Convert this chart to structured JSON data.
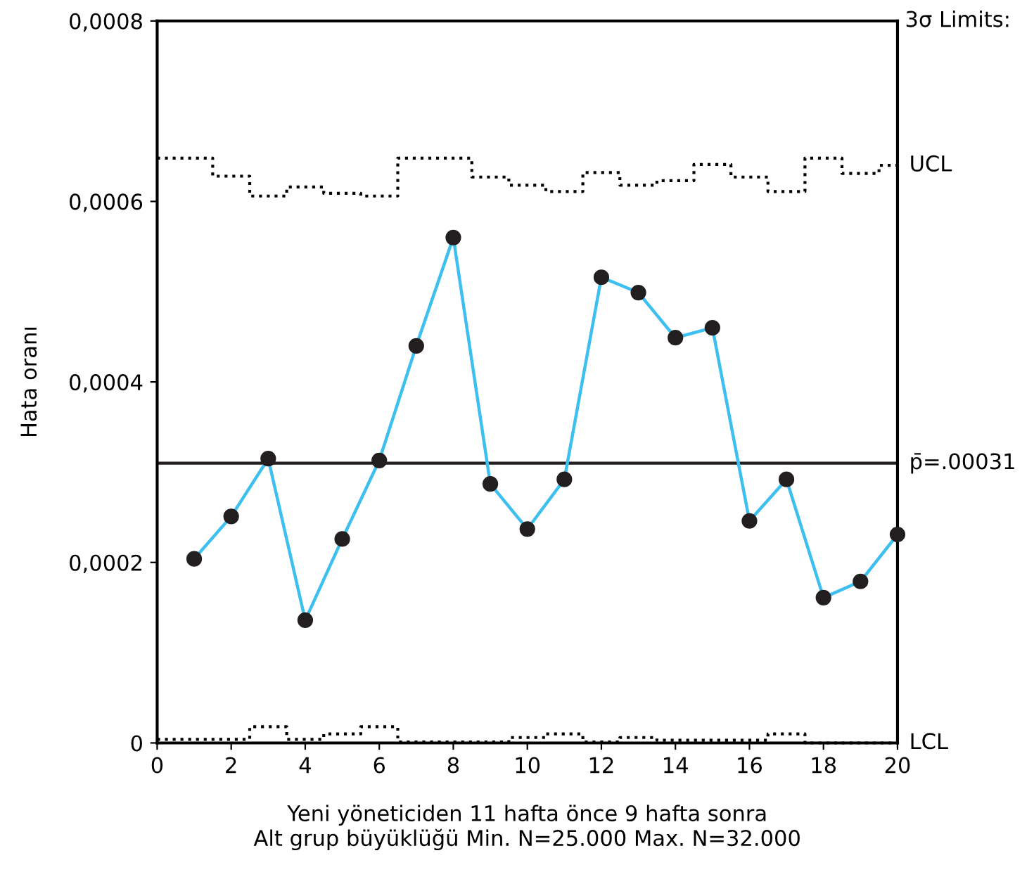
{
  "chart_data": {
    "type": "line",
    "xlabel": "Yeni yöneticiden 11 hafta önce 9 hafta sonra\nAlt grup büyüklüğü Min. N=25.000 Max. N=32.000",
    "ylabel": "Hata oranı",
    "xlim": [
      0,
      20
    ],
    "xticks": [
      0,
      2,
      4,
      6,
      8,
      10,
      12,
      14,
      16,
      18,
      20
    ],
    "ylim": [
      0,
      0.0008
    ],
    "yticks": [
      {
        "value": 0,
        "label": "0"
      },
      {
        "value": 0.0002,
        "label": "0,0002"
      },
      {
        "value": 0.0004,
        "label": "0,0004"
      },
      {
        "value": 0.0006,
        "label": "0,0006"
      },
      {
        "value": 0.0008,
        "label": "0,0008"
      }
    ],
    "grid": false,
    "legend": false,
    "marker": "circle",
    "line_style": "solid",
    "series": [
      {
        "color": "#3dbfef",
        "x": [
          1,
          2,
          3,
          4,
          5,
          6,
          7,
          8,
          9,
          10,
          11,
          12,
          13,
          14,
          15,
          16,
          17,
          18,
          19,
          20
        ],
        "values": [
          0.000204,
          0.000251,
          0.000315,
          0.000136,
          0.000226,
          0.000313,
          0.00044,
          0.00056,
          0.000287,
          0.000237,
          0.000292,
          0.000516,
          0.000499,
          0.000449,
          0.00046,
          0.000246,
          0.000292,
          0.000161,
          0.000179,
          0.000231
        ]
      },
      {
        "type": "step",
        "color": "#000000",
        "marker": "none",
        "line_style": "dotted",
        "x": [
          0,
          1,
          2,
          3,
          4,
          5,
          6,
          7,
          8,
          9,
          10,
          11,
          12,
          13,
          14,
          15,
          16,
          17,
          18,
          19,
          20
        ],
        "values": [
          0.000648,
          0.000648,
          0.000628,
          0.000606,
          0.000616,
          0.000609,
          0.000606,
          0.000648,
          0.000648,
          0.000627,
          0.000618,
          0.000611,
          0.000632,
          0.000618,
          0.000623,
          0.000641,
          0.000627,
          0.000611,
          0.000648,
          0.000631,
          0.00064
        ]
      },
      {
        "type": "step",
        "color": "#000000",
        "marker": "none",
        "line_style": "dotted",
        "x": [
          0,
          1,
          2,
          3,
          4,
          5,
          6,
          7,
          8,
          9,
          10,
          11,
          12,
          13,
          14,
          15,
          16,
          17,
          18,
          19,
          20
        ],
        "values": [
          4e-06,
          4e-06,
          4e-06,
          1.8e-05,
          4e-06,
          1e-05,
          1.8e-05,
          1e-06,
          1e-06,
          1e-06,
          6e-06,
          1e-05,
          1e-06,
          6e-06,
          3e-06,
          3e-06,
          3e-06,
          1e-05,
          0,
          0,
          0
        ]
      }
    ],
    "ref_lines": [
      {
        "axis": "y",
        "value": 0.00031,
        "label": "p̄=.00031",
        "color": "#231f20",
        "line_style": "solid"
      }
    ],
    "annotations": [
      "3σ Limits:",
      {
        "text": "UCL",
        "x": 20,
        "y": 0.00064
      },
      {
        "text": "LCL",
        "x": 20,
        "y": 0
      }
    ]
  }
}
